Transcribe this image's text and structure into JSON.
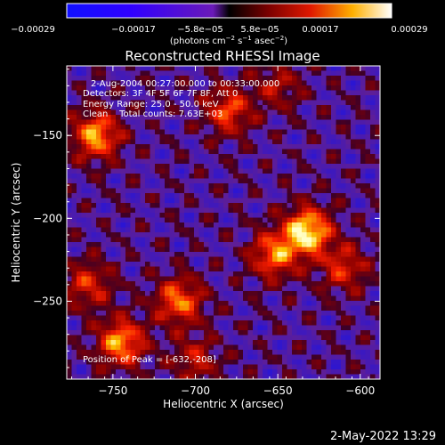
{
  "chart_data": {
    "type": "heatmap",
    "title": "Reconstructed RHESSI Image",
    "xlabel": "Heliocentric X (arcsec)",
    "ylabel": "Heliocentric Y (arcsec)",
    "xlim": [
      -778,
      -588
    ],
    "ylim": [
      -297,
      -108
    ],
    "x_ticks": [
      -750,
      -700,
      -650,
      -600
    ],
    "y_ticks": [
      -250,
      -200,
      -150
    ],
    "x_tick_labels": [
      "−750",
      "−700",
      "−650",
      "−600"
    ],
    "y_tick_labels": [
      "−250",
      "−200",
      "−150"
    ],
    "colorbar": {
      "range": [
        -0.00029,
        0.00029
      ],
      "tick_labels": [
        "−0.00029",
        "−0.00017",
        "−5.8e−05",
        "5.8e−05",
        "0.00017",
        "0.00029"
      ],
      "unit_main": "(photons cm",
      "unit_exp1": "−2",
      "unit_mid1": " s",
      "unit_exp2": "−1",
      "unit_mid2": " asec",
      "unit_exp3": "−2",
      "unit_end": ")"
    },
    "annotations": {
      "time": "2-Aug-2004 00:27:00.000 to 00:33:00.000",
      "detectors": "Detectors: 3F 4F 5F 6F 7F 8F, Att 0",
      "energy": "Energy Range: 25.0 - 50.0 keV",
      "clean": "Clean    Total counts: 7.63E+03",
      "peak": "Position of Peak = [-632,-208]"
    },
    "peak": [
      -632,
      -208
    ],
    "sources": [
      {
        "x": -632,
        "y": -208,
        "amp": 1.0
      },
      {
        "x": -652,
        "y": -222,
        "amp": 0.7
      },
      {
        "x": -760,
        "y": -150,
        "amp": 0.8
      },
      {
        "x": -680,
        "y": -135,
        "amp": 0.6
      },
      {
        "x": -745,
        "y": -275,
        "amp": 0.8
      },
      {
        "x": -710,
        "y": -250,
        "amp": 0.7
      },
      {
        "x": -765,
        "y": -240,
        "amp": 0.5
      },
      {
        "x": -610,
        "y": -230,
        "amp": 0.5
      },
      {
        "x": -650,
        "y": -120,
        "amp": 0.35
      },
      {
        "x": -700,
        "y": -285,
        "amp": 0.4
      }
    ]
  },
  "footer": {
    "timestamp": "2-May-2022 13:29"
  }
}
